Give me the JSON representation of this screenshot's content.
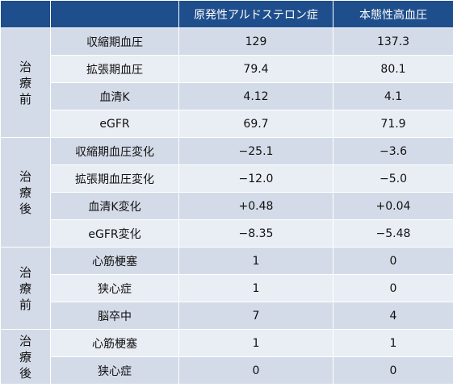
{
  "header": {
    "col1": "",
    "col2": "",
    "col3": "原発性アルドステロン症",
    "col4": "本態性高血圧"
  },
  "groups": [
    {
      "label": [
        "治",
        "療",
        "前"
      ],
      "rows": [
        {
          "name": "収縮期血圧",
          "pa": "129",
          "eh": "137.3"
        },
        {
          "name": "拡張期血圧",
          "pa": "79.4",
          "eh": "80.1"
        },
        {
          "name": "血清K",
          "pa": "4.12",
          "eh": "4.1"
        },
        {
          "name": "eGFR",
          "pa": "69.7",
          "eh": "71.9"
        }
      ]
    },
    {
      "label": [
        "治",
        "療",
        "後"
      ],
      "rows": [
        {
          "name": "収縮期血圧変化",
          "pa": "−25.1",
          "eh": "−3.6"
        },
        {
          "name": "拡張期血圧変化",
          "pa": "−12.0",
          "eh": "−5.0"
        },
        {
          "name": "血清K変化",
          "pa": "+0.48",
          "eh": "+0.04"
        },
        {
          "name": "eGFR変化",
          "pa": "−8.35",
          "eh": "−5.48"
        }
      ]
    },
    {
      "label": [
        "治",
        "療",
        "前"
      ],
      "rows": [
        {
          "name": "心筋梗塞",
          "pa": "1",
          "eh": "0"
        },
        {
          "name": "狭心症",
          "pa": "1",
          "eh": "0"
        },
        {
          "name": "脳卒中",
          "pa": "7",
          "eh": "4"
        }
      ]
    },
    {
      "label": [
        "治",
        "療",
        "後"
      ],
      "rows": [
        {
          "name": "心筋梗塞",
          "pa": "1",
          "eh": "1"
        },
        {
          "name": "狭心症",
          "pa": "0",
          "eh": "0"
        }
      ]
    }
  ],
  "colors": {
    "header": "#1f4e8c",
    "band_dark": "#d4dbe8",
    "band_light": "#e9edf4"
  }
}
